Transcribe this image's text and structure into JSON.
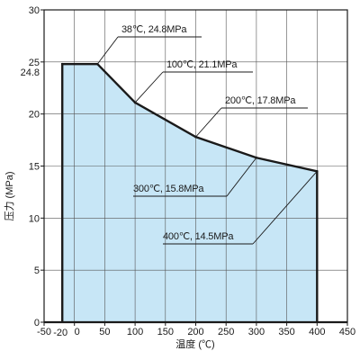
{
  "chart_data": {
    "type": "area",
    "title": "",
    "xlabel": "温度 (℃)",
    "ylabel": "压力 (MPa)",
    "xlim": [
      -50,
      450
    ],
    "ylim": [
      0,
      30
    ],
    "x_ticks": [
      "-50",
      "0",
      "50",
      "100",
      "150",
      "200",
      "250",
      "300",
      "350",
      "400",
      "450"
    ],
    "x_tick_values": [
      -50,
      0,
      50,
      100,
      150,
      200,
      250,
      300,
      350,
      400,
      450
    ],
    "x_extra_tick": {
      "label": "-20",
      "value": -20
    },
    "y_ticks": [
      "0",
      "5",
      "10",
      "15",
      "20",
      "25",
      "30"
    ],
    "y_tick_values": [
      0,
      5,
      10,
      15,
      20,
      25,
      30
    ],
    "y_extra_tick": {
      "label": "24.8",
      "value": 24.8
    },
    "grid": true,
    "fill_color": "#c7e6f6",
    "line_color": "#1a1a1a",
    "x": [
      -20,
      38,
      100,
      200,
      300,
      400
    ],
    "y": [
      24.8,
      24.8,
      21.1,
      17.8,
      15.8,
      14.5
    ],
    "annotations": [
      {
        "text": "38℃, 24.8MPa",
        "x": 38,
        "y": 24.8
      },
      {
        "text": "100℃, 21.1MPa",
        "x": 100,
        "y": 21.1
      },
      {
        "text": "200℃, 17.8MPa",
        "x": 200,
        "y": 17.8
      },
      {
        "text": "300℃, 15.8MPa",
        "x": 300,
        "y": 15.8
      },
      {
        "text": "400℃, 14.5MPa",
        "x": 400,
        "y": 14.5
      }
    ]
  }
}
